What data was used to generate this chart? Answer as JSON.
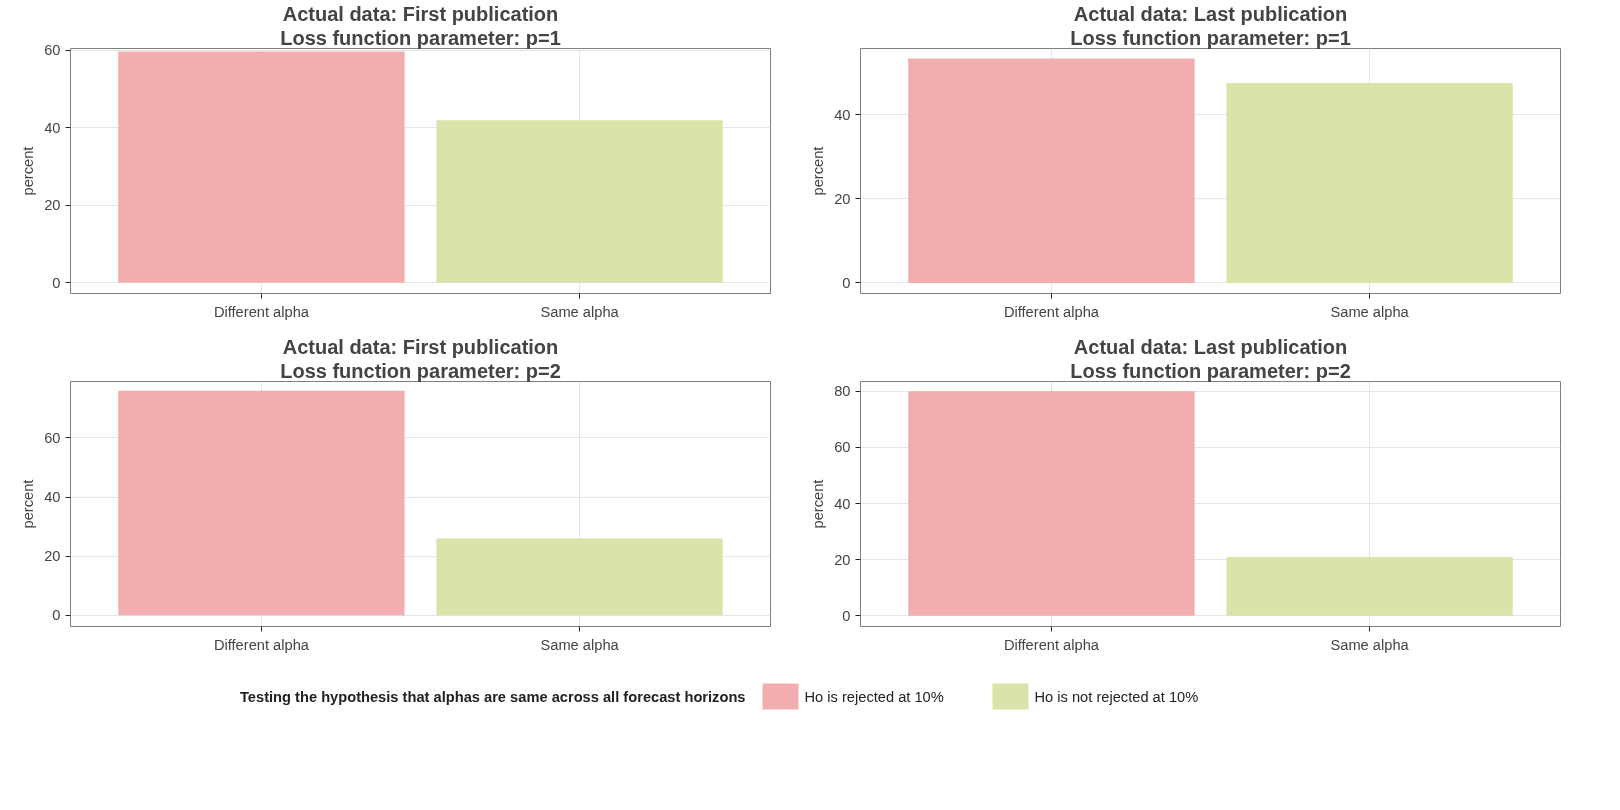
{
  "chart_data": [
    {
      "type": "bar",
      "title": "Actual data: First publication",
      "subtitle": "Loss function parameter: p=1",
      "ylabel": "percent",
      "categories": [
        "Different alpha",
        "Same alpha"
      ],
      "series": [
        {
          "color": "#f2aeae",
          "values": [
            59.6,
            null
          ]
        },
        {
          "color": "#d9e3aa",
          "values": [
            null,
            41.9
          ]
        }
      ],
      "ylim": [
        -2.8,
        60.4
      ],
      "yticks": [
        0,
        20,
        40,
        60
      ],
      "grid": true
    },
    {
      "type": "bar",
      "title": "Actual data: Last publication",
      "subtitle": "Loss function parameter: p=1",
      "ylabel": "percent",
      "categories": [
        "Different alpha",
        "Same alpha"
      ],
      "series": [
        {
          "color": "#f2aeae",
          "values": [
            53.4,
            null
          ]
        },
        {
          "color": "#d9e3aa",
          "values": [
            null,
            47.6
          ]
        }
      ],
      "ylim": [
        -2.5,
        55.8
      ],
      "yticks": [
        0,
        20,
        40
      ],
      "grid": true
    },
    {
      "type": "bar",
      "title": "Actual data: First publication",
      "subtitle": "Loss function parameter: p=2",
      "ylabel": "percent",
      "categories": [
        "Different alpha",
        "Same alpha"
      ],
      "series": [
        {
          "color": "#f2aeae",
          "values": [
            76,
            null
          ]
        },
        {
          "color": "#d9e3aa",
          "values": [
            null,
            26
          ]
        }
      ],
      "ylim": [
        -3.8,
        79.1
      ],
      "yticks": [
        0,
        20,
        40,
        60
      ],
      "grid": true
    },
    {
      "type": "bar",
      "title": "Actual data: Last publication",
      "subtitle": "Loss function parameter: p=2",
      "ylabel": "percent",
      "categories": [
        "Different alpha",
        "Same alpha"
      ],
      "series": [
        {
          "name": "Ho is rejected at 10%",
          "color": "#f2aeae",
          "values": [
            80,
            null
          ]
        },
        {
          "name": "Ho is not rejected at 10%",
          "color": "#d9e3aa",
          "values": [
            null,
            21
          ]
        }
      ],
      "ylim": [
        -3.8,
        83.5
      ],
      "yticks": [
        0,
        20,
        40,
        60,
        80
      ],
      "grid": true,
      "legend": "bottom",
      "legend_title": "Testing the hypothesis that alphas are same across all forecast horizons"
    }
  ]
}
